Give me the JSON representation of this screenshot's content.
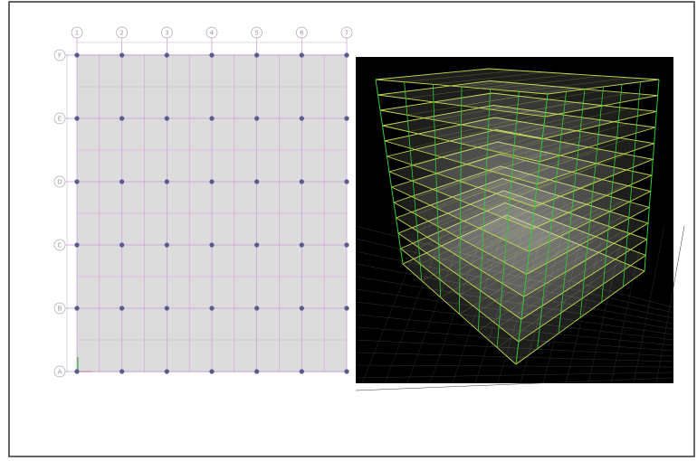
{
  "plan": {
    "column_labels": [
      "1",
      "2",
      "3",
      "4",
      "5",
      "6",
      "7"
    ],
    "row_labels": [
      "F",
      "E",
      "D",
      "C",
      "B",
      "A"
    ]
  }
}
